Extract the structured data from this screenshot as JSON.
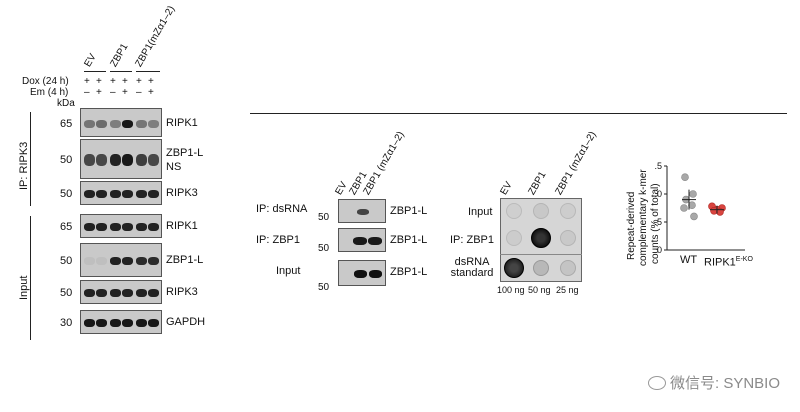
{
  "left": {
    "conditions": [
      "EV",
      "ZBP1",
      "ZBP1(mZα1–2)"
    ],
    "dox_label": "Dox (24 h)",
    "em_label": "Em (4 h)",
    "dox_signs": [
      "+",
      "+",
      "+",
      "+",
      "+",
      "+"
    ],
    "em_signs": [
      "–",
      "+",
      "–",
      "+",
      "–",
      "+"
    ],
    "kda_label": "kDa",
    "ip_section_label": "IP: RIPK3",
    "input_section_label": "Input",
    "blots": [
      {
        "marker": "65",
        "label": "RIPK1",
        "label2": ""
      },
      {
        "marker": "50",
        "label": "ZBP1-L",
        "label2": "NS"
      },
      {
        "marker": "50",
        "label": "RIPK3",
        "label2": ""
      },
      {
        "marker": "65",
        "label": "RIPK1",
        "label2": ""
      },
      {
        "marker": "50",
        "label": "ZBP1-L",
        "label2": ""
      },
      {
        "marker": "50",
        "label": "RIPK3",
        "label2": ""
      },
      {
        "marker": "30",
        "label": "GAPDH",
        "label2": ""
      }
    ]
  },
  "middle": {
    "lanes": [
      "EV",
      "ZBP1",
      "ZBP1 (mZα1–2)"
    ],
    "rows": [
      {
        "label": "IP: dsRNA",
        "marker": "50",
        "band": "ZBP1-L"
      },
      {
        "label": "IP: ZBP1",
        "marker": "50",
        "band": "ZBP1-L"
      },
      {
        "label": "Input",
        "marker": "50",
        "band": "ZBP1-L"
      }
    ]
  },
  "dotblot": {
    "lanes": [
      "EV",
      "ZBP1",
      "ZBP1 (mZα1–2)"
    ],
    "rows": [
      "Input",
      "IP: ZBP1",
      "dsRNA standard"
    ],
    "standard_amounts": [
      "100 ng",
      "50 ng",
      "25 ng"
    ]
  },
  "scatter": {
    "ylabel_line1": "Repeat-derived",
    "ylabel_line2": "complementary k-mer",
    "ylabel_line3": "counts (% of total)",
    "yticks": [
      "1.5",
      "1.0",
      "0.5",
      "0"
    ],
    "groups": [
      "WT",
      "RIPK1"
    ],
    "group2_superscript": "E-KO",
    "colors": {
      "wt": "#a8a8a8",
      "ko": "#d9443f"
    }
  },
  "chart_data": {
    "type": "scatter",
    "categories": [
      "WT",
      "RIPK1 E-KO"
    ],
    "ylim": [
      0,
      1.5
    ],
    "series": [
      {
        "name": "WT",
        "values": [
          1.3,
          1.0,
          0.9,
          0.8,
          0.75,
          0.6
        ],
        "mean": 0.9
      },
      {
        "name": "RIPK1 E-KO",
        "values": [
          0.78,
          0.75,
          0.72,
          0.7,
          0.68
        ],
        "mean": 0.72
      }
    ],
    "xlabel": "",
    "ylabel": "Repeat-derived complementary k-mer counts (% of total)"
  },
  "watermark": "微信号: SYNBIO"
}
